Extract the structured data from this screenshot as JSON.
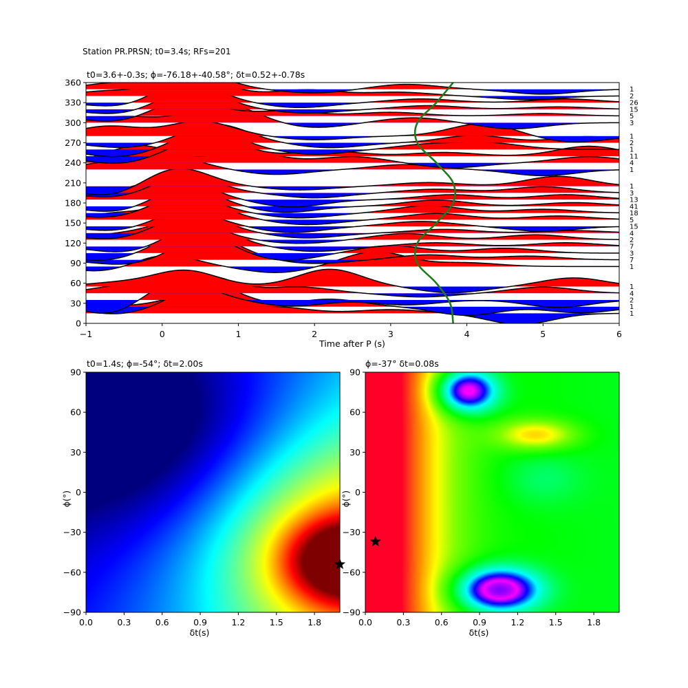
{
  "figure": {
    "suptitle": "Station PR.PRSN; t0=3.4s; RFs=201"
  },
  "chart_data": [
    {
      "type": "line",
      "panel": "receiver-function-gather",
      "title": "t0=3.6+-0.3s; ϕ=-76.18+-40.58°; δt=0.52+-0.78s",
      "xlabel": "Time after P (s)",
      "ylabel": "",
      "xlim": [
        -1,
        6
      ],
      "ylim": [
        0,
        360
      ],
      "xticks": [
        -1,
        0,
        1,
        2,
        3,
        4,
        5,
        6
      ],
      "yticks": [
        0,
        30,
        60,
        90,
        120,
        150,
        180,
        210,
        240,
        270,
        300,
        330,
        360
      ],
      "positive_fill_color": "#ff0000",
      "negative_fill_color": "#0000ff",
      "trace_color": "#000000",
      "model_curve_color": "#1a7d1a",
      "model_curve": {
        "y": [
          0,
          30,
          60,
          90,
          120,
          150,
          180,
          210,
          240,
          270,
          300,
          330,
          360
        ],
        "x": [
          3.82,
          3.78,
          3.6,
          3.35,
          3.35,
          3.6,
          3.82,
          3.82,
          3.6,
          3.35,
          3.35,
          3.6,
          3.82
        ]
      },
      "traces": [
        {
          "baz": 15,
          "count": "1",
          "peaks": [
            [
              -0.6,
              0.5
            ],
            [
              0.4,
              1.4
            ],
            [
              1.5,
              0.5
            ],
            [
              3.0,
              0.3
            ],
            [
              4.7,
              -0.9
            ]
          ]
        },
        {
          "baz": 25,
          "count": "1",
          "peaks": [
            [
              -0.6,
              -0.6
            ],
            [
              0.6,
              1.8
            ],
            [
              2.2,
              0.6
            ],
            [
              4.0,
              -0.7
            ],
            [
              5.5,
              -0.5
            ]
          ]
        },
        {
          "baz": 35,
          "count": "2",
          "peaks": [
            [
              -0.7,
              -1.2
            ],
            [
              0.2,
              1.6
            ],
            [
              1.7,
              -0.5
            ],
            [
              3.2,
              -0.4
            ],
            [
              5.2,
              -0.6
            ]
          ]
        },
        {
          "baz": 45,
          "count": "4",
          "peaks": [
            [
              -0.5,
              0.6
            ],
            [
              0.5,
              1.5
            ],
            [
              1.8,
              0.5
            ],
            [
              3.4,
              -0.3
            ],
            [
              5.0,
              0.5
            ]
          ]
        },
        {
          "baz": 55,
          "count": "1",
          "peaks": [
            [
              -0.6,
              0.3
            ],
            [
              0.3,
              1.3
            ],
            [
              2.2,
              1.4
            ],
            [
              3.8,
              -0.5
            ],
            [
              5.4,
              0.7
            ]
          ]
        },
        {
          "baz": 85,
          "count": "1",
          "peaks": [
            [
              -0.7,
              -0.5
            ],
            [
              0.0,
              1.0
            ],
            [
              1.5,
              -0.5
            ],
            [
              2.8,
              1.2
            ],
            [
              4.0,
              0.3
            ]
          ]
        },
        {
          "baz": 95,
          "count": "7",
          "peaks": [
            [
              -0.5,
              -0.4
            ],
            [
              0.6,
              1.9
            ],
            [
              2.0,
              -0.3
            ],
            [
              3.5,
              0.4
            ],
            [
              4.8,
              0.3
            ]
          ]
        },
        {
          "baz": 105,
          "count": "3",
          "peaks": [
            [
              -0.8,
              -0.6
            ],
            [
              0.4,
              1.8
            ],
            [
              1.6,
              -0.6
            ],
            [
              3.0,
              0.6
            ],
            [
              4.5,
              0.4
            ]
          ]
        },
        {
          "baz": 115,
          "count": "7",
          "peaks": [
            [
              -0.5,
              -0.5
            ],
            [
              0.5,
              1.7
            ],
            [
              2.0,
              -0.4
            ],
            [
              3.6,
              0.3
            ],
            [
              5.3,
              0.3
            ]
          ]
        },
        {
          "baz": 125,
          "count": "2",
          "peaks": [
            [
              -0.6,
              0.4
            ],
            [
              0.3,
              1.6
            ],
            [
              1.8,
              -0.3
            ],
            [
              3.2,
              0.5
            ],
            [
              4.9,
              0.4
            ]
          ]
        },
        {
          "baz": 135,
          "count": "4",
          "peaks": [
            [
              -0.7,
              -0.5
            ],
            [
              0.4,
              1.5
            ],
            [
              1.9,
              -0.4
            ],
            [
              3.7,
              0.3
            ],
            [
              5.4,
              0.2
            ]
          ]
        },
        {
          "baz": 145,
          "count": "15",
          "peaks": [
            [
              -0.6,
              -0.4
            ],
            [
              0.3,
              1.2
            ],
            [
              1.7,
              -0.5
            ],
            [
              3.4,
              0.4
            ],
            [
              5.0,
              -0.4
            ]
          ]
        },
        {
          "baz": 155,
          "count": "5",
          "peaks": [
            [
              -0.6,
              0.5
            ],
            [
              0.4,
              1.6
            ],
            [
              1.9,
              -0.4
            ],
            [
              3.6,
              0.5
            ],
            [
              5.2,
              0.3
            ]
          ]
        },
        {
          "baz": 165,
          "count": "18",
          "peaks": [
            [
              -0.7,
              -0.4
            ],
            [
              0.3,
              1.4
            ],
            [
              1.8,
              -0.4
            ],
            [
              3.5,
              0.6
            ],
            [
              5.0,
              0.3
            ]
          ]
        },
        {
          "baz": 175,
          "count": "41",
          "peaks": [
            [
              -0.6,
              -0.5
            ],
            [
              0.3,
              1.5
            ],
            [
              1.6,
              -0.5
            ],
            [
              3.6,
              0.5
            ],
            [
              5.4,
              0.3
            ]
          ]
        },
        {
          "baz": 185,
          "count": "13",
          "peaks": [
            [
              -0.5,
              0.5
            ],
            [
              0.2,
              1.6
            ],
            [
              1.7,
              -0.6
            ],
            [
              3.8,
              0.4
            ],
            [
              5.3,
              0.4
            ]
          ]
        },
        {
          "baz": 195,
          "count": "3",
          "peaks": [
            [
              -0.6,
              -0.4
            ],
            [
              0.3,
              1.4
            ],
            [
              2.0,
              -0.4
            ],
            [
              3.6,
              0.3
            ],
            [
              5.0,
              0.5
            ]
          ]
        },
        {
          "baz": 205,
          "count": "1",
          "peaks": [
            [
              -0.7,
              -0.8
            ],
            [
              0.2,
              1.5
            ],
            [
              1.8,
              -0.3
            ],
            [
              3.5,
              0.3
            ],
            [
              5.2,
              0.8
            ]
          ]
        },
        {
          "baz": 230,
          "count": "1",
          "peaks": [
            [
              -0.7,
              0.5
            ],
            [
              0.1,
              1.0
            ],
            [
              1.5,
              -0.4
            ],
            [
              3.2,
              0.4
            ],
            [
              5.0,
              -0.5
            ]
          ]
        },
        {
          "baz": 240,
          "count": "4",
          "peaks": [
            [
              -0.3,
              1.4
            ],
            [
              1.1,
              0.9
            ],
            [
              2.5,
              0.5
            ],
            [
              3.8,
              -0.4
            ],
            [
              5.6,
              0.5
            ]
          ]
        },
        {
          "baz": 250,
          "count": "11",
          "peaks": [
            [
              -0.6,
              -0.6
            ],
            [
              0.6,
              1.6
            ],
            [
              2.2,
              0.4
            ],
            [
              3.7,
              0.3
            ],
            [
              5.6,
              0.8
            ]
          ]
        },
        {
          "baz": 260,
          "count": "1",
          "peaks": [
            [
              -0.6,
              -0.6
            ],
            [
              0.6,
              1.5
            ],
            [
              2.0,
              -0.4
            ],
            [
              3.5,
              0.4
            ],
            [
              4.3,
              0.5
            ]
          ]
        },
        {
          "baz": 270,
          "count": "2",
          "peaks": [
            [
              -0.5,
              -0.4
            ],
            [
              0.7,
              1.5
            ],
            [
              2.2,
              -0.4
            ],
            [
              4.1,
              0.6
            ],
            [
              5.6,
              0.5
            ]
          ]
        },
        {
          "baz": 280,
          "count": "1",
          "peaks": [
            [
              -0.7,
              0.8
            ],
            [
              0.5,
              1.2
            ],
            [
              2.0,
              -0.3
            ],
            [
              4.2,
              1.0
            ],
            [
              5.4,
              -0.5
            ]
          ]
        },
        {
          "baz": 300,
          "count": "3",
          "peaks": [
            [
              -0.5,
              0.5
            ],
            [
              0.8,
              1.5
            ],
            [
              2.0,
              -0.4
            ],
            [
              3.3,
              0.4
            ],
            [
              4.6,
              -0.5
            ]
          ]
        },
        {
          "baz": 310,
          "count": "5",
          "peaks": [
            [
              -0.6,
              -0.5
            ],
            [
              0.3,
              1.3
            ],
            [
              1.6,
              0.4
            ],
            [
              3.0,
              0.3
            ],
            [
              5.0,
              0.2
            ]
          ]
        },
        {
          "baz": 320,
          "count": "15",
          "peaks": [
            [
              -0.6,
              -0.4
            ],
            [
              0.4,
              1.6
            ],
            [
              1.9,
              -0.3
            ],
            [
              3.5,
              0.3
            ],
            [
              5.2,
              0.2
            ]
          ]
        },
        {
          "baz": 330,
          "count": "26",
          "peaks": [
            [
              -0.5,
              -0.4
            ],
            [
              0.3,
              1.7
            ],
            [
              1.8,
              -0.4
            ],
            [
              3.4,
              0.3
            ],
            [
              5.3,
              0.3
            ]
          ]
        },
        {
          "baz": 340,
          "count": "2",
          "peaks": [
            [
              -0.7,
              0.4
            ],
            [
              0.4,
              1.6
            ],
            [
              1.9,
              0.5
            ],
            [
              3.1,
              0.3
            ],
            [
              4.8,
              -0.3
            ]
          ]
        },
        {
          "baz": 350,
          "count": "1",
          "peaks": [
            [
              -0.6,
              0.5
            ],
            [
              0.4,
              1.4
            ],
            [
              2.0,
              -0.3
            ],
            [
              3.2,
              0.4
            ],
            [
              5.0,
              -0.4
            ]
          ]
        }
      ]
    },
    {
      "type": "heatmap",
      "panel": "grid-search-left",
      "title": "t0=1.4s; ϕ=-54°; δt=2.00s",
      "xlabel": "δt(s)",
      "ylabel": "ϕ(°)",
      "xlim": [
        0,
        2.0
      ],
      "ylim": [
        -90,
        90
      ],
      "xticks": [
        "0.0",
        "0.3",
        "0.6",
        "0.9",
        "1.2",
        "1.5",
        "1.8"
      ],
      "yticks": [
        "−90",
        "−60",
        "−30",
        "0",
        "30",
        "60",
        "90"
      ],
      "colormap": "jet",
      "best_fit": {
        "dt": 2.0,
        "phi": -54
      },
      "marker": "star",
      "colormap_stops": [
        {
          "at": 0.0,
          "color": "#00007f"
        },
        {
          "at": 0.12,
          "color": "#0000ff"
        },
        {
          "at": 0.36,
          "color": "#00ffff"
        },
        {
          "at": 0.5,
          "color": "#7dff7a"
        },
        {
          "at": 0.64,
          "color": "#ffff00"
        },
        {
          "at": 0.88,
          "color": "#ff0000"
        },
        {
          "at": 1.0,
          "color": "#7f0000"
        }
      ],
      "features": [
        {
          "dt": 2.05,
          "phi": -52,
          "sdt": 0.33,
          "sphi": 22,
          "amp": 0.52
        },
        {
          "dt": 2.05,
          "phi": -42,
          "sdt": 0.75,
          "sphi": 58,
          "amp": 0.42
        },
        {
          "dt": 0.5,
          "phi": 45,
          "sdt": 0.75,
          "sphi": 52,
          "amp": -0.22
        }
      ],
      "gradient": {
        "base": 0.08,
        "slope_dt": 0.13,
        "slope_phi": -0.0006
      }
    },
    {
      "type": "heatmap",
      "panel": "grid-search-right",
      "title": "ϕ=-37° δt=0.08s",
      "xlabel": "δt(s)",
      "ylabel": "ϕ(°)",
      "xlim": [
        0,
        2.0
      ],
      "ylim": [
        -90,
        90
      ],
      "xticks": [
        "0.0",
        "0.3",
        "0.6",
        "0.9",
        "1.2",
        "1.5",
        "1.8"
      ],
      "yticks": [
        "−90",
        "−60",
        "−30",
        "0",
        "30",
        "60",
        "90"
      ],
      "colormap": "gist_rainbow_r",
      "best_fit": {
        "dt": 0.08,
        "phi": -37
      },
      "marker": "star",
      "colormap_stops": [
        {
          "at": 0.0,
          "color": "#7f00ff"
        },
        {
          "at": 0.1,
          "color": "#ff00ff"
        },
        {
          "at": 0.22,
          "color": "#0000ff"
        },
        {
          "at": 0.34,
          "color": "#00ffff"
        },
        {
          "at": 0.46,
          "color": "#00ff80"
        },
        {
          "at": 0.56,
          "color": "#00ff00"
        },
        {
          "at": 0.68,
          "color": "#80ff00"
        },
        {
          "at": 0.76,
          "color": "#ffff00"
        },
        {
          "at": 0.86,
          "color": "#ff9000"
        },
        {
          "at": 1.0,
          "color": "#ff0029"
        }
      ],
      "features": [
        {
          "dt": 0.05,
          "phi": 0,
          "sdt": 0.22,
          "sphi": 2000,
          "amp": 0.38
        },
        {
          "dt": 0.35,
          "phi": 0,
          "sdt": 0.3,
          "sphi": 2000,
          "amp": 0.2
        },
        {
          "dt": 0.8,
          "phi": 76,
          "sdt": 0.16,
          "sphi": 11,
          "amp": -0.55
        },
        {
          "dt": 1.05,
          "phi": -73,
          "sdt": 0.22,
          "sphi": 11,
          "amp": -0.58
        },
        {
          "dt": 1.35,
          "phi": 43,
          "sdt": 0.22,
          "sphi": 8,
          "amp": 0.24
        },
        {
          "dt": 1.4,
          "phi": 10,
          "sdt": 0.22,
          "sphi": 14,
          "amp": -0.08
        }
      ],
      "gradient": {
        "base": 0.6,
        "slope_dt": -0.03,
        "slope_phi": 0
      }
    }
  ]
}
